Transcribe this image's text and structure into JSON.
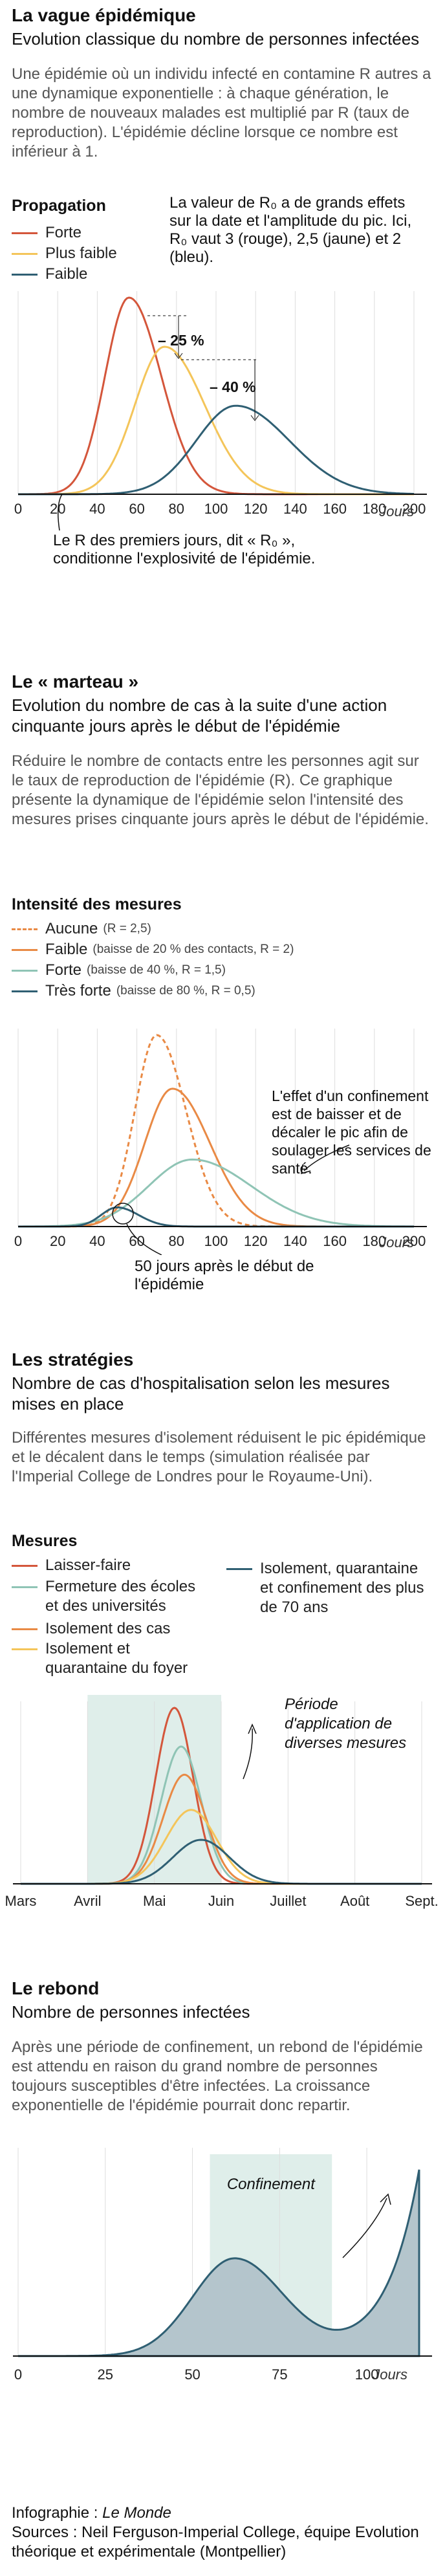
{
  "sections": {
    "s1": {
      "title": "La vague épidémique",
      "subtitle": "Evolution classique du nombre de personnes infectées",
      "body": "Une épidémie où un individu infecté en contamine R autres a une dynamique exponentielle : à chaque génération, le nombre de nouveaux malades est multiplié par R (taux de reproduction). L'épidémie décline lorsque ce nombre est inférieur à 1.",
      "legend_title": "Propagation",
      "note": "La valeur de R₀ a de grands effets sur la date et l'amplitude du pic. Ici, R₀ vaut 3 (rouge), 2,5 (jaune) et 2 (bleu).",
      "annot": "Le R des premiers jours, dit « R₀ », conditionne l'explosivité de l'épidémie."
    },
    "s2": {
      "title": "Le « marteau »",
      "subtitle": "Evolution du nombre de cas à la suite d'une action cinquante jours après le début de l'épidémie",
      "body": "Réduire le nombre de contacts entre les personnes agit sur le taux de reproduction de l'épidémie (R). Ce graphique présente la dynamique de l'épidémie selon l'intensité des mesures prises cinquante jours après le début de l'épidémie.",
      "legend_title": "Intensité des mesures",
      "note": "L'effet d'un confinement est de baisser et de décaler le pic afin de soulager les services de santé.",
      "annot": "50 jours après le début de l'épidémie"
    },
    "s3": {
      "title": "Les stratégies",
      "subtitle": "Nombre de cas d'hospitalisation selon les mesures mises en place",
      "body": "Différentes mesures d'isolement réduisent le pic épidémique et le décalent dans le temps (simulation réalisée par l'Imperial College de Londres pour le Royaume-Uni).",
      "legend_title": "Mesures",
      "annot": "Période d'application de diverses mesures"
    },
    "s4": {
      "title": "Le rebond",
      "subtitle": "Nombre de personnes infectées",
      "body": "Après une période de confinement, un rebond de l'épidémie est attendu en raison du grand nombre de personnes toujours susceptibles d'être infectées. La croissance exponentielle de l'épidémie pourrait donc repartir.",
      "annot": "Confinement"
    }
  },
  "footer": {
    "credit_prefix": "Infographie : ",
    "credit_name": "Le Monde",
    "sources": "Sources : Neil Ferguson-Imperial College, équipe Evolution théorique et expérimentale (Montpellier)"
  },
  "colors": {
    "red": "#d4563b",
    "yellow": "#f4c55a",
    "blue": "#2f5f73",
    "teal": "#8fc4b5",
    "orange": "#e98a45",
    "shade": "#dfeeea",
    "area": "#b4c5cc"
  },
  "chart_data": [
    {
      "type": "line",
      "xlabel": "Jours",
      "xticks": [
        0,
        20,
        40,
        60,
        80,
        100,
        120,
        140,
        160,
        180,
        200
      ],
      "xlim": [
        0,
        200
      ],
      "series": [
        {
          "name": "Forte",
          "color": "red",
          "peak_x": 56,
          "peak_rel": 1.0,
          "width": 12
        },
        {
          "name": "Plus faible",
          "color": "yellow",
          "peak_x": 74,
          "peak_rel": 0.75,
          "width": 15
        },
        {
          "name": "Faible",
          "color": "blue",
          "peak_x": 110,
          "peak_rel": 0.45,
          "width": 20
        }
      ],
      "annotations": [
        "– 25 %",
        "– 40 %"
      ]
    },
    {
      "type": "line",
      "xlabel": "Jours",
      "xticks": [
        0,
        20,
        40,
        60,
        80,
        100,
        120,
        140,
        160,
        180,
        200
      ],
      "xlim": [
        0,
        200
      ],
      "series": [
        {
          "name": "Aucune",
          "detail": "(R = 2,5)",
          "color": "orange",
          "dashed": true,
          "peak_x": 70,
          "peak_rel": 1.0,
          "width": 11
        },
        {
          "name": "Faible",
          "detail": "(baisse de 20 % des contacts, R = 2)",
          "color": "orange",
          "peak_x": 78,
          "peak_rel": 0.72,
          "width": 14
        },
        {
          "name": "Forte",
          "detail": "(baisse de 40 %, R = 1,5)",
          "color": "teal",
          "peak_x": 88,
          "peak_rel": 0.35,
          "width": 22
        },
        {
          "name": "Très forte",
          "detail": "(baisse de 80 %, R = 0,5)",
          "color": "blue",
          "peak_x": 50,
          "peak_rel": 0.1,
          "width": 8
        }
      ]
    },
    {
      "type": "line",
      "categories": [
        "Mars",
        "Avril",
        "Mai",
        "Juin",
        "Juillet",
        "Août",
        "Sept."
      ],
      "series": [
        {
          "name": "Laisser-faire",
          "color": "red",
          "peak": 2.3,
          "peak_rel": 1.0,
          "width": 0.28
        },
        {
          "name": "Fermeture des écoles et des universités",
          "color": "teal",
          "peak": 2.4,
          "peak_rel": 0.78,
          "width": 0.3
        },
        {
          "name": "Isolement des cas",
          "color": "orange",
          "peak": 2.45,
          "peak_rel": 0.62,
          "width": 0.32
        },
        {
          "name": "Isolement et quarantaine du foyer",
          "color": "yellow",
          "peak": 2.55,
          "peak_rel": 0.42,
          "width": 0.38
        },
        {
          "name": "Isolement, quarantaine et confinement des plus de 70 ans",
          "color": "blue",
          "peak": 2.7,
          "peak_rel": 0.25,
          "width": 0.42
        }
      ],
      "shaded_period": [
        1.0,
        3.0
      ]
    },
    {
      "type": "area",
      "xlabel": "Jours",
      "xticks": [
        0,
        25,
        50,
        75,
        100
      ],
      "xlim": [
        0,
        115
      ],
      "shaded_period": [
        55,
        90
      ]
    }
  ]
}
